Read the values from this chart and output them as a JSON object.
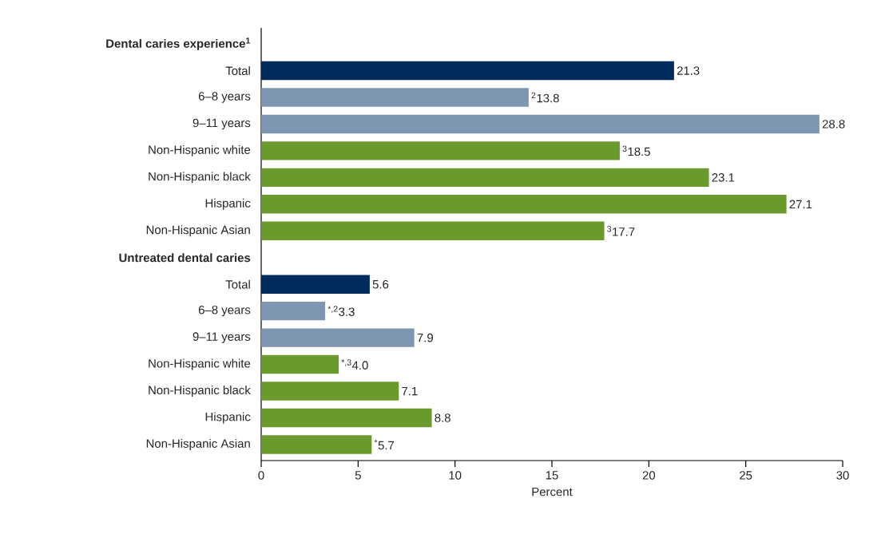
{
  "chart_data": {
    "type": "bar",
    "orientation": "horizontal",
    "xlabel": "Percent",
    "categories": [
      "Dental caries experience$^{1}$",
      "Total",
      "6–8 years",
      "9–11 years",
      "Non-Hispanic white",
      "Non-Hispanic black",
      "Hispanic",
      "Non-Hispanic Asian",
      "Untreated dental caries",
      "Total",
      "6–8 years",
      "9–11 years",
      "Non-Hispanic white",
      "Non-Hispanic black",
      "Hispanic",
      "Non-Hispanic Asian"
    ],
    "values": [
      null,
      21.3,
      13.8,
      28.8,
      18.5,
      23.1,
      27.1,
      17.7,
      null,
      5.6,
      3.3,
      7.9,
      4.0,
      7.1,
      8.8,
      5.7
    ],
    "colors": [
      null,
      "#002b5c",
      "#7f96b2",
      "#7f96b2",
      "#6a9a2e",
      "#6a9a2e",
      "#6a9a2e",
      "#6a9a2e",
      null,
      "#002b5c",
      "#7f96b2",
      "#7f96b2",
      "#6a9a2e",
      "#6a9a2e",
      "#6a9a2e",
      "#6a9a2e"
    ],
    "value_labels": [
      null,
      "21.3",
      "$^{2}$13.8",
      "28.8",
      "$^{3}$18.5",
      "23.1",
      "27.1",
      "$^{3}$17.7",
      null,
      "5.6",
      "$^{*,2}$3.3",
      "7.9",
      "$^{*,3}$4.0",
      "7.1",
      "8.8",
      "$^{*}$5.7"
    ],
    "xlim": [
      0,
      30
    ],
    "xticks": [
      0,
      5,
      10,
      15,
      20,
      25,
      30
    ],
    "grid": false
  }
}
